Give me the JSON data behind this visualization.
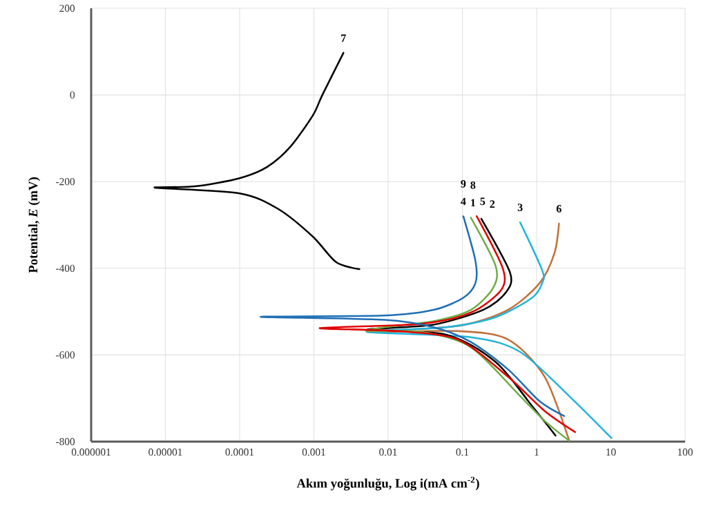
{
  "chart_data": {
    "type": "line",
    "xlabel": "Akım yoğunluğu,  Log i(mA cm$^{-2}$)",
    "ylabel": "Potential, *E* (mV)",
    "log": "x",
    "grid": true,
    "line_style": "solid",
    "marker": "none",
    "xlim": [
      1e-06,
      100
    ],
    "ylim": [
      -800,
      200
    ],
    "xticks": [
      {
        "value": 1e-06,
        "label": "0.000001"
      },
      {
        "value": 1e-05,
        "label": "0.00001"
      },
      {
        "value": 0.0001,
        "label": "0.0001"
      },
      {
        "value": 0.001,
        "label": "0.001"
      },
      {
        "value": 0.01,
        "label": "0.01"
      },
      {
        "value": 0.1,
        "label": "0.1"
      },
      {
        "value": 1,
        "label": "1"
      },
      {
        "value": 10,
        "label": "10"
      },
      {
        "value": 100,
        "label": "100"
      }
    ],
    "yticks": [
      -800,
      -600,
      -400,
      -200,
      0,
      200
    ],
    "series": [
      {
        "name": "7",
        "color": "#000000",
        "x": [
          0.0025,
          0.0013,
          0.00097,
          0.00048,
          0.000235,
          0.0001,
          2.5e-05,
          7.3e-06,
          0.0001,
          0.00033,
          0.00097,
          0.002,
          0.0041
        ],
        "values": [
          97,
          0,
          -47,
          -120,
          -166,
          -192,
          -211,
          -214,
          -227,
          -263,
          -327,
          -386,
          -402
        ]
      },
      {
        "name": "6",
        "color": "#c0703a",
        "x": [
          2.0,
          1.74,
          1.1,
          0.41,
          0.088,
          0.0052,
          0.088,
          0.41,
          1.28,
          2.75
        ],
        "values": [
          -297,
          -365,
          -434,
          -496,
          -533,
          -547,
          -545,
          -564,
          -650,
          -798
        ]
      },
      {
        "name": "3",
        "color": "#22b4d8",
        "x": [
          0.6,
          1.19,
          1.19,
          0.87,
          0.28,
          0.06,
          0.0052,
          0.13,
          0.6,
          2.75,
          10.2
        ],
        "values": [
          -294,
          -405,
          -434,
          -468,
          -513,
          -536,
          -547,
          -559,
          -593,
          -695,
          -792
        ]
      },
      {
        "name": "2",
        "color": "#000000",
        "x": [
          0.18,
          0.44,
          0.38,
          0.19,
          0.041,
          0.0052,
          0.06,
          0.28,
          0.87,
          1.8
        ],
        "values": [
          -286,
          -411,
          -457,
          -496,
          -530,
          -542,
          -553,
          -616,
          -718,
          -786
        ]
      },
      {
        "name": "1",
        "color": "#70ad47",
        "x": [
          0.13,
          0.28,
          0.26,
          0.13,
          0.041,
          0.0089,
          0.0052,
          0.028,
          0.13,
          0.6,
          1.28,
          2.75
        ],
        "values": [
          -283,
          -394,
          -445,
          -496,
          -522,
          -536,
          -545,
          -547,
          -582,
          -695,
          -752,
          -798
        ]
      },
      {
        "name": "5",
        "color": "#e00000",
        "x": [
          0.156,
          0.35,
          0.33,
          0.13,
          0.028,
          0.0012,
          0.013,
          0.088,
          0.41,
          1.28,
          3.3
        ],
        "values": [
          -280,
          -400,
          -451,
          -502,
          -528,
          -538,
          -545,
          -565,
          -650,
          -729,
          -778
        ]
      },
      {
        "name": "4",
        "color": "#1f6fb5",
        "x": [
          0.103,
          0.15,
          0.15,
          0.103,
          0.041,
          0.0089,
          0.00019,
          0.0089,
          0.041,
          0.13,
          0.41,
          1.1,
          2.35
        ],
        "values": [
          -280,
          -383,
          -434,
          -468,
          -496,
          -509,
          -512,
          -519,
          -536,
          -570,
          -633,
          -707,
          -741
        ]
      }
    ],
    "annotations": [
      "9",
      "8"
    ]
  }
}
